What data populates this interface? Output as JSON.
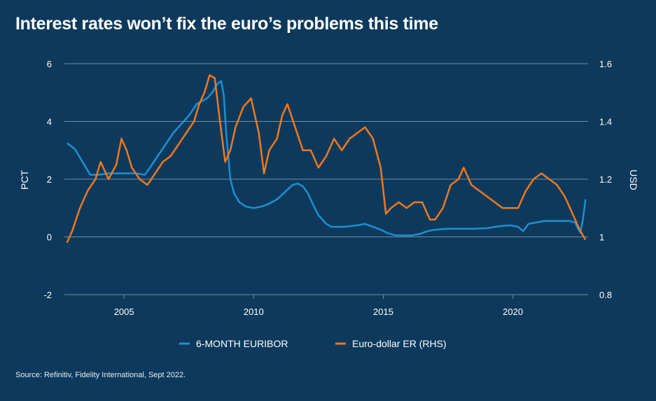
{
  "title": "Interest rates won’t fix the euro’s problems this time",
  "source": "Source: Refinitiv, Fidelity International, Sept 2022.",
  "colors": {
    "background": "#0d3a5c",
    "euribor": "#1f8fd1",
    "eurusd": "#f0781e",
    "grid": "#6f8ea6"
  },
  "chart_data": {
    "type": "line",
    "xlim": [
      2002.7,
      2022.9
    ],
    "x_ticks": [
      2005,
      2010,
      2015,
      2020
    ],
    "y_left": {
      "label": "PCT",
      "lim": [
        -2,
        6
      ],
      "ticks": [
        -2,
        0,
        2,
        4,
        6
      ]
    },
    "y_right": {
      "label": "USD",
      "lim": [
        0.8,
        1.6
      ],
      "ticks": [
        "0.8",
        "1",
        "1.2",
        "1.4",
        "1.6"
      ]
    },
    "grid": true,
    "legend_position": "bottom-center",
    "series": [
      {
        "name": "6-MONTH EURIBOR",
        "axis": "left",
        "x": [
          2002.8,
          2003.1,
          2003.4,
          2003.7,
          2004.0,
          2004.4,
          2004.8,
          2005.2,
          2005.5,
          2005.8,
          2006.0,
          2006.3,
          2006.6,
          2006.9,
          2007.2,
          2007.5,
          2007.8,
          2008.0,
          2008.2,
          2008.4,
          2008.6,
          2008.75,
          2008.85,
          2008.95,
          2009.1,
          2009.25,
          2009.45,
          2009.7,
          2010.0,
          2010.3,
          2010.6,
          2010.9,
          2011.2,
          2011.5,
          2011.7,
          2011.9,
          2012.1,
          2012.3,
          2012.5,
          2012.8,
          2013.0,
          2013.5,
          2014.0,
          2014.3,
          2014.6,
          2014.9,
          2015.2,
          2015.5,
          2015.8,
          2016.1,
          2016.4,
          2016.7,
          2017.0,
          2017.5,
          2018.0,
          2018.5,
          2019.0,
          2019.3,
          2019.6,
          2019.9,
          2020.2,
          2020.4,
          2020.6,
          2020.9,
          2021.2,
          2021.5,
          2021.8,
          2022.0,
          2022.2,
          2022.4,
          2022.5,
          2022.6,
          2022.7,
          2022.8
        ],
        "values": [
          3.25,
          3.05,
          2.6,
          2.15,
          2.15,
          2.2,
          2.2,
          2.2,
          2.2,
          2.15,
          2.4,
          2.8,
          3.2,
          3.6,
          3.9,
          4.2,
          4.6,
          4.7,
          4.8,
          5.0,
          5.3,
          5.4,
          4.9,
          3.5,
          2.0,
          1.5,
          1.2,
          1.05,
          1.0,
          1.05,
          1.15,
          1.3,
          1.55,
          1.8,
          1.85,
          1.75,
          1.5,
          1.1,
          0.75,
          0.45,
          0.35,
          0.35,
          0.4,
          0.45,
          0.35,
          0.25,
          0.12,
          0.05,
          0.05,
          0.05,
          0.1,
          0.2,
          0.25,
          0.28,
          0.28,
          0.28,
          0.3,
          0.35,
          0.38,
          0.4,
          0.35,
          0.2,
          0.45,
          0.5,
          0.55,
          0.55,
          0.55,
          0.55,
          0.55,
          0.5,
          0.3,
          0.15,
          0.6,
          1.3
        ]
      },
      {
        "name": "Euro-dollar ER (RHS)",
        "axis": "right",
        "x": [
          2002.8,
          2003.0,
          2003.3,
          2003.6,
          2003.9,
          2004.1,
          2004.4,
          2004.7,
          2004.9,
          2005.1,
          2005.3,
          2005.6,
          2005.9,
          2006.2,
          2006.5,
          2006.8,
          2007.1,
          2007.4,
          2007.7,
          2007.9,
          2008.1,
          2008.3,
          2008.5,
          2008.7,
          2008.9,
          2009.1,
          2009.3,
          2009.6,
          2009.9,
          2010.2,
          2010.4,
          2010.6,
          2010.9,
          2011.1,
          2011.3,
          2011.6,
          2011.9,
          2012.2,
          2012.5,
          2012.8,
          2013.1,
          2013.4,
          2013.7,
          2014.0,
          2014.3,
          2014.6,
          2014.9,
          2015.1,
          2015.3,
          2015.6,
          2015.9,
          2016.2,
          2016.5,
          2016.8,
          2017.0,
          2017.3,
          2017.6,
          2017.9,
          2018.1,
          2018.4,
          2018.7,
          2019.0,
          2019.3,
          2019.6,
          2019.9,
          2020.2,
          2020.5,
          2020.8,
          2021.1,
          2021.4,
          2021.7,
          2022.0,
          2022.2,
          2022.4,
          2022.6,
          2022.8
        ],
        "values": [
          0.98,
          1.02,
          1.1,
          1.16,
          1.2,
          1.26,
          1.2,
          1.25,
          1.34,
          1.3,
          1.24,
          1.2,
          1.18,
          1.22,
          1.26,
          1.28,
          1.32,
          1.36,
          1.4,
          1.46,
          1.5,
          1.56,
          1.55,
          1.4,
          1.26,
          1.3,
          1.38,
          1.45,
          1.48,
          1.36,
          1.22,
          1.3,
          1.34,
          1.42,
          1.46,
          1.38,
          1.3,
          1.3,
          1.24,
          1.28,
          1.34,
          1.3,
          1.34,
          1.36,
          1.38,
          1.34,
          1.24,
          1.08,
          1.1,
          1.12,
          1.1,
          1.12,
          1.12,
          1.06,
          1.06,
          1.1,
          1.18,
          1.2,
          1.24,
          1.18,
          1.16,
          1.14,
          1.12,
          1.1,
          1.1,
          1.1,
          1.16,
          1.2,
          1.22,
          1.2,
          1.18,
          1.14,
          1.1,
          1.06,
          1.02,
          0.99
        ]
      }
    ]
  }
}
